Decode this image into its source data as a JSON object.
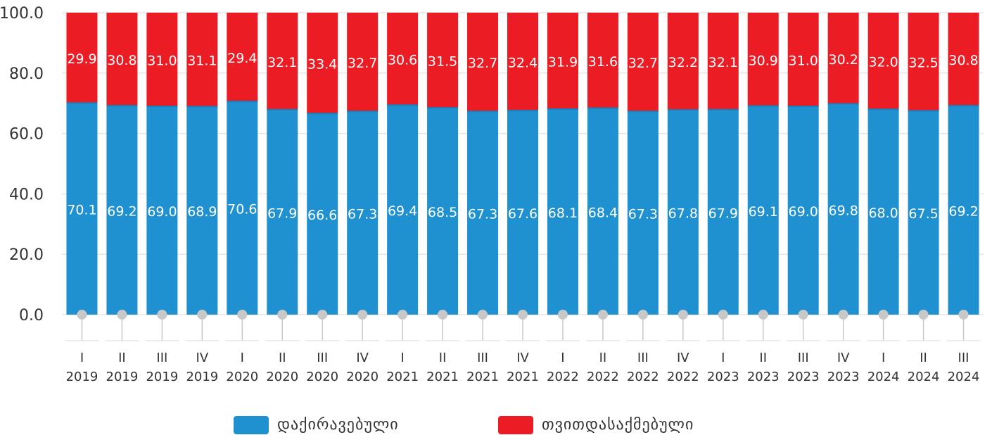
{
  "chart_data": {
    "type": "bar",
    "stacked": true,
    "title": "",
    "xlabel": "",
    "ylabel": "",
    "ylim": [
      0,
      100
    ],
    "yticks": [
      "0.0",
      "20.0",
      "40.0",
      "60.0",
      "80.0",
      "100.0"
    ],
    "grid": true,
    "legend_position": "bottom-center",
    "categories": [
      {
        "quarter": "I",
        "year": "2019"
      },
      {
        "quarter": "II",
        "year": "2019"
      },
      {
        "quarter": "III",
        "year": "2019"
      },
      {
        "quarter": "IV",
        "year": "2019"
      },
      {
        "quarter": "I",
        "year": "2020"
      },
      {
        "quarter": "II",
        "year": "2020"
      },
      {
        "quarter": "III",
        "year": "2020"
      },
      {
        "quarter": "IV",
        "year": "2020"
      },
      {
        "quarter": "I",
        "year": "2021"
      },
      {
        "quarter": "II",
        "year": "2021"
      },
      {
        "quarter": "III",
        "year": "2021"
      },
      {
        "quarter": "IV",
        "year": "2021"
      },
      {
        "quarter": "I",
        "year": "2022"
      },
      {
        "quarter": "II",
        "year": "2022"
      },
      {
        "quarter": "III",
        "year": "2022"
      },
      {
        "quarter": "IV",
        "year": "2022"
      },
      {
        "quarter": "I",
        "year": "2023"
      },
      {
        "quarter": "II",
        "year": "2023"
      },
      {
        "quarter": "III",
        "year": "2023"
      },
      {
        "quarter": "IV",
        "year": "2023"
      },
      {
        "quarter": "I",
        "year": "2024"
      },
      {
        "quarter": "II",
        "year": "2024"
      },
      {
        "quarter": "III",
        "year": "2024"
      }
    ],
    "series": [
      {
        "name": "დაქირავებული",
        "color": "#1f91d0",
        "values": [
          70.1,
          69.2,
          69.0,
          68.9,
          70.6,
          67.9,
          66.6,
          67.3,
          69.4,
          68.5,
          67.3,
          67.6,
          68.1,
          68.4,
          67.3,
          67.8,
          67.9,
          69.1,
          69.0,
          69.8,
          68.0,
          67.5,
          69.2
        ],
        "labels": [
          "70.1",
          "69.2",
          "69.0",
          "68.9",
          "70.6",
          "67.9",
          "66.6",
          "67.3",
          "69.4",
          "68.5",
          "67.3",
          "67.6",
          "68.1",
          "68.4",
          "67.3",
          "67.8",
          "67.9",
          "69.1",
          "69.0",
          "69.8",
          "68.0",
          "67.5",
          "69.2"
        ]
      },
      {
        "name": "თვითდასაქმებული",
        "color": "#ec1c24",
        "values": [
          29.9,
          30.8,
          31.0,
          31.1,
          29.4,
          32.1,
          33.4,
          32.7,
          30.6,
          31.5,
          32.7,
          32.4,
          31.9,
          31.6,
          32.7,
          32.2,
          32.1,
          30.9,
          31.0,
          30.2,
          32.0,
          32.5,
          30.8
        ],
        "labels": [
          "29.9",
          "30.8",
          "31.0",
          "31.1",
          "29.4",
          "32.1",
          "33.4",
          "32.7",
          "30.6",
          "31.5",
          "32.7",
          "32.4",
          "31.9",
          "31.6",
          "32.7",
          "32.2",
          "32.1",
          "30.9",
          "31.0",
          "30.2",
          "32.0",
          "32.5",
          "30.8"
        ]
      }
    ]
  },
  "colors": {
    "grid": "#e6e6e6",
    "axis_text": "#333333",
    "marker": "#c8c8c8",
    "label_text": "#ffffff"
  }
}
